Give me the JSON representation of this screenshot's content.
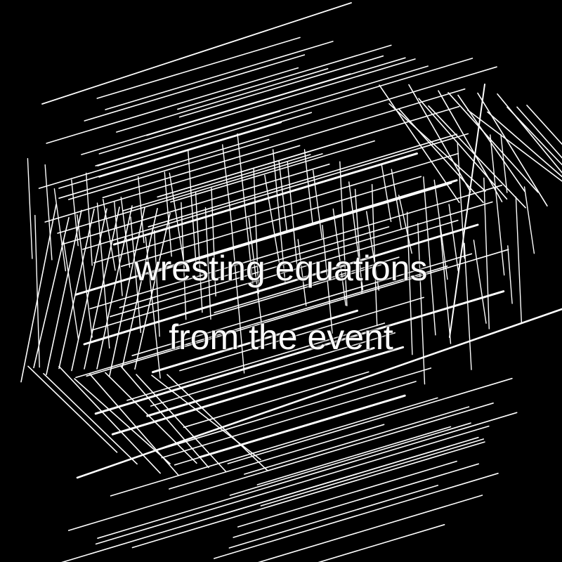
{
  "background_color": "#000000",
  "line_color": "#ffffff",
  "text_color": "#ffffff",
  "caption": {
    "line1": "wresting equations",
    "line2": "from the event"
  }
}
